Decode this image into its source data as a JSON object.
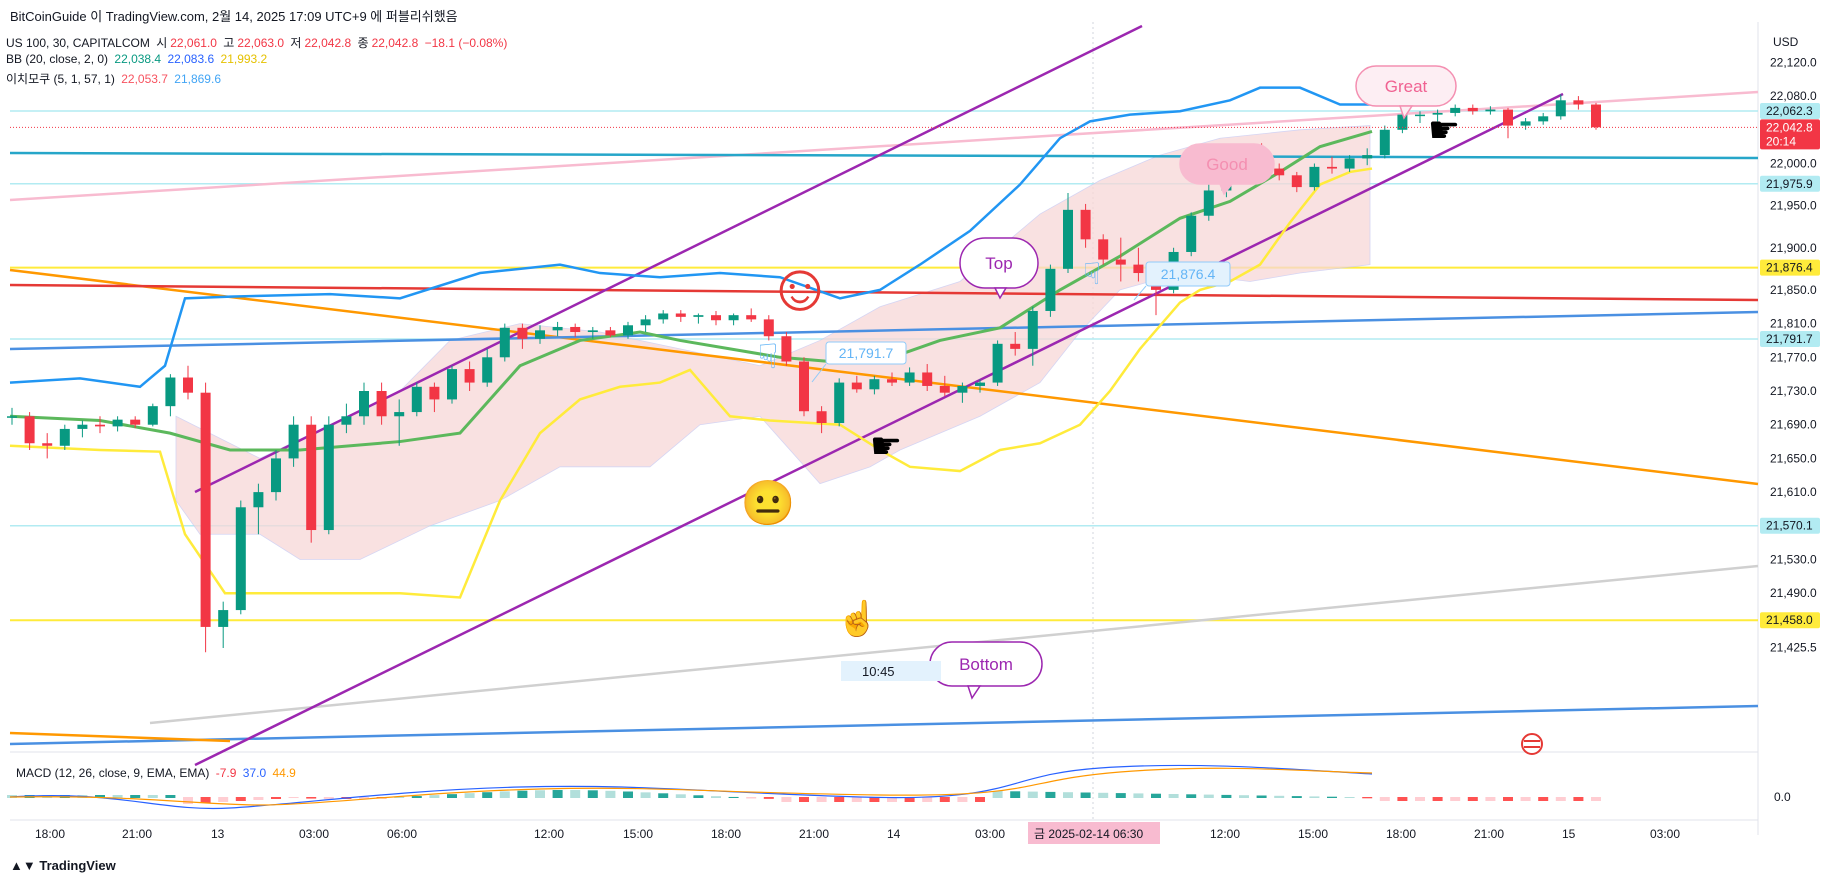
{
  "title_bar": "BitCoinGuide 이 TradingView.com, 2월 14, 2025 17:09 UTC+9 에 퍼블리쉬했음",
  "symbol": {
    "name": "US 100, 30, CAPITALCOM",
    "o_label": "시",
    "o": "22,061.0",
    "h_label": "고",
    "h": "22,063.0",
    "l_label": "저",
    "l": "22,042.8",
    "c_label": "종",
    "c": "22,042.8",
    "change": "−18.1 (−0.08%)"
  },
  "bb": {
    "label": "BB (20, close, 2, 0)",
    "basis": "22,038.4",
    "upper": "22,083.6",
    "lower": "21,993.2"
  },
  "ichimoku": {
    "label": "이치모쿠 (5, 1, 57, 1)",
    "v1": "22,053.7",
    "v2": "21,869.6"
  },
  "macd": {
    "label": "MACD (12, 26, close, 9, EMA, EMA)",
    "hist": "-7.9",
    "macd": "37.0",
    "signal": "44.9"
  },
  "currency": "USD",
  "footer_brand": "TradingView",
  "colors": {
    "up": "#089981",
    "down": "#f23645",
    "bb": "#2196f3",
    "basis": "#5cb85c",
    "lagging": "#ffeb3b",
    "channel": "#9c27b0",
    "cloud": "#f8d7d7"
  },
  "annotations": {
    "great": "Great",
    "good": "Good",
    "top": "Top",
    "bottom": "Bottom",
    "price_note_1": "21,791.7",
    "price_note_2": "21,876.4",
    "time_note": "10:45"
  },
  "axis": {
    "date_badge": "금 2025-02-14   06:30"
  },
  "chart_data": {
    "type": "candlestick",
    "instrument": "US 100, 30, CAPITALCOM",
    "y_ticks": [
      22120.0,
      22080.0,
      22040.0,
      22000.0,
      21950.0,
      21900.0,
      21850.0,
      21810.0,
      21770.0,
      21730.0,
      21690.0,
      21650.0,
      21610.0,
      21570.0,
      21530.0,
      21490.0,
      21425.5
    ],
    "y_tick_labels": [
      "22,120.0",
      "22,080.0",
      "22,040.0",
      "22,000.0",
      "21,950.0",
      "21,900.0",
      "21,850.0",
      "21,810.0",
      "21,770.0",
      "21,730.0",
      "21,690.0",
      "21,650.0",
      "21,610.0",
      "21,570.0",
      "21,530.0",
      "21,490.0",
      "21,425.5"
    ],
    "x_tick_labels": [
      "18:00",
      "21:00",
      "13",
      "03:00",
      "06:00",
      "12:00",
      "15:00",
      "18:00",
      "21:00",
      "14",
      "03:00",
      "12:00",
      "15:00",
      "18:00",
      "21:00",
      "15",
      "03:00"
    ],
    "price_labels": [
      {
        "text": "22,062.3",
        "value": 22062.3,
        "style": "light"
      },
      {
        "text": "22,042.8",
        "sub": "20:14",
        "value": 22042.8,
        "style": "last"
      },
      {
        "text": "21,975.9",
        "value": 21975.9,
        "style": "light"
      },
      {
        "text": "21,876.4",
        "value": 21876.4,
        "style": "yellow"
      },
      {
        "text": "21,791.7",
        "value": 21791.7,
        "style": "light"
      },
      {
        "text": "21,570.1",
        "value": 21570.1,
        "style": "light"
      },
      {
        "text": "21,458.0",
        "value": 21458.0,
        "style": "yellow"
      }
    ],
    "horizontal_levels": [
      22062.3,
      21975.9,
      21791.7,
      21570.1,
      21876.4,
      21458.0
    ],
    "candles_ohlc": [
      [
        21700,
        21710,
        21690,
        21700
      ],
      [
        21700,
        21705,
        21660,
        21668
      ],
      [
        21668,
        21680,
        21650,
        21665
      ],
      [
        21665,
        21690,
        21660,
        21685
      ],
      [
        21685,
        21695,
        21675,
        21690
      ],
      [
        21690,
        21700,
        21680,
        21688
      ],
      [
        21688,
        21700,
        21682,
        21696
      ],
      [
        21696,
        21700,
        21686,
        21690
      ],
      [
        21690,
        21715,
        21688,
        21712
      ],
      [
        21712,
        21750,
        21700,
        21746
      ],
      [
        21746,
        21760,
        21720,
        21728
      ],
      [
        21728,
        21740,
        21420,
        21450
      ],
      [
        21450,
        21480,
        21425,
        21470
      ],
      [
        21470,
        21600,
        21465,
        21592
      ],
      [
        21592,
        21620,
        21560,
        21610
      ],
      [
        21610,
        21660,
        21600,
        21650
      ],
      [
        21650,
        21700,
        21640,
        21690
      ],
      [
        21690,
        21700,
        21550,
        21565
      ],
      [
        21565,
        21700,
        21560,
        21690
      ],
      [
        21690,
        21715,
        21680,
        21700
      ],
      [
        21700,
        21740,
        21690,
        21730
      ],
      [
        21730,
        21740,
        21690,
        21700
      ],
      [
        21700,
        21720,
        21665,
        21705
      ],
      [
        21705,
        21740,
        21700,
        21735
      ],
      [
        21735,
        21740,
        21705,
        21720
      ],
      [
        21720,
        21760,
        21715,
        21756
      ],
      [
        21756,
        21765,
        21730,
        21740
      ],
      [
        21740,
        21780,
        21735,
        21770
      ],
      [
        21770,
        21810,
        21765,
        21805
      ],
      [
        21805,
        21810,
        21780,
        21792
      ],
      [
        21792,
        21808,
        21786,
        21802
      ],
      [
        21802,
        21812,
        21795,
        21806
      ],
      [
        21806,
        21810,
        21794,
        21800
      ],
      [
        21800,
        21806,
        21792,
        21802
      ],
      [
        21802,
        21806,
        21794,
        21796
      ],
      [
        21796,
        21812,
        21792,
        21808
      ],
      [
        21808,
        21820,
        21800,
        21815
      ],
      [
        21815,
        21826,
        21810,
        21822
      ],
      [
        21822,
        21826,
        21812,
        21818
      ],
      [
        21818,
        21822,
        21810,
        21820
      ],
      [
        21820,
        21825,
        21808,
        21814
      ],
      [
        21814,
        21822,
        21808,
        21820
      ],
      [
        21820,
        21828,
        21812,
        21815
      ],
      [
        21815,
        21820,
        21790,
        21795
      ],
      [
        21795,
        21800,
        21760,
        21765
      ],
      [
        21765,
        21770,
        21700,
        21706
      ],
      [
        21706,
        21712,
        21680,
        21692
      ],
      [
        21692,
        21745,
        21688,
        21740
      ],
      [
        21740,
        21748,
        21728,
        21732
      ],
      [
        21732,
        21748,
        21726,
        21744
      ],
      [
        21744,
        21752,
        21736,
        21740
      ],
      [
        21740,
        21758,
        21736,
        21752
      ],
      [
        21752,
        21762,
        21730,
        21736
      ],
      [
        21736,
        21748,
        21724,
        21728
      ],
      [
        21728,
        21740,
        21716,
        21736
      ],
      [
        21736,
        21744,
        21728,
        21740
      ],
      [
        21740,
        21790,
        21736,
        21786
      ],
      [
        21786,
        21800,
        21772,
        21780
      ],
      [
        21780,
        21830,
        21760,
        21825
      ],
      [
        21825,
        21880,
        21818,
        21875
      ],
      [
        21875,
        21965,
        21870,
        21945
      ],
      [
        21945,
        21952,
        21900,
        21910
      ],
      [
        21910,
        21916,
        21880,
        21886
      ],
      [
        21886,
        21912,
        21860,
        21880
      ],
      [
        21880,
        21900,
        21860,
        21870
      ],
      [
        21870,
        21880,
        21820,
        21850
      ],
      [
        21850,
        21900,
        21846,
        21895
      ],
      [
        21895,
        21942,
        21890,
        21938
      ],
      [
        21938,
        21975,
        21932,
        21968
      ],
      [
        21968,
        22000,
        21960,
        21992
      ],
      [
        21992,
        22022,
        21985,
        22018
      ],
      [
        22018,
        22024,
        21990,
        21994
      ],
      [
        21994,
        22000,
        21980,
        21986
      ],
      [
        21986,
        21990,
        21966,
        21972
      ],
      [
        21972,
        22000,
        21968,
        21996
      ],
      [
        21996,
        22008,
        21988,
        21994
      ],
      [
        21994,
        22010,
        21990,
        22006
      ],
      [
        22006,
        22018,
        21998,
        22010
      ],
      [
        22010,
        22045,
        22006,
        22040
      ],
      [
        22040,
        22062,
        22036,
        22058
      ],
      [
        22058,
        22062,
        22048,
        22058
      ],
      [
        22058,
        22064,
        22050,
        22060
      ],
      [
        22060,
        22070,
        22056,
        22066
      ],
      [
        22066,
        22070,
        22058,
        22062
      ],
      [
        22062,
        22068,
        22058,
        22064
      ],
      [
        22064,
        22066,
        22030,
        22045
      ],
      [
        22045,
        22054,
        22040,
        22050
      ],
      [
        22050,
        22060,
        22046,
        22056
      ],
      [
        22056,
        22082,
        22052,
        22075
      ],
      [
        22075,
        22080,
        22064,
        22070
      ],
      [
        22070,
        22072,
        22040,
        22043
      ]
    ]
  }
}
